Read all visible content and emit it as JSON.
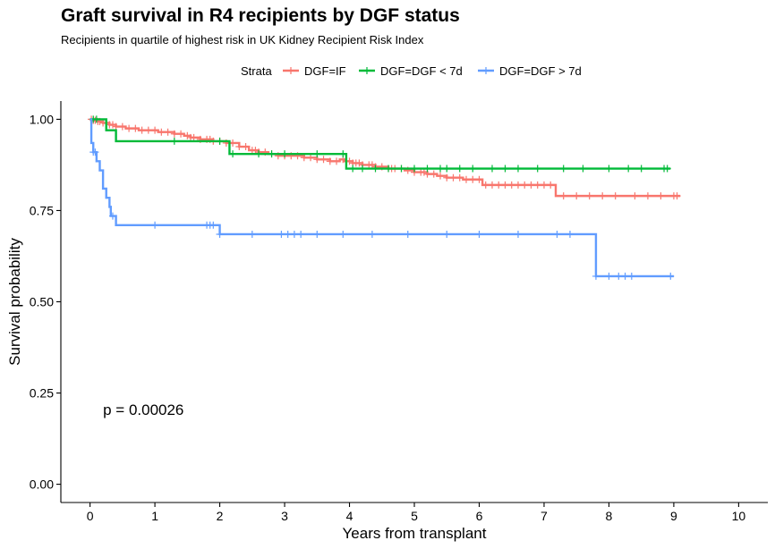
{
  "chart_data": {
    "type": "line",
    "subtype": "kaplan-meier step",
    "title": "Graft survival in R4 recipients by DGF status",
    "subtitle": "Recipients in quartile of highest risk in UK Kidney Recipient Risk Index",
    "xlabel": "Years from transplant",
    "ylabel": "Survival probability",
    "xlim": [
      -0.45,
      10.45
    ],
    "ylim": [
      -0.05,
      1.05
    ],
    "x_ticks": [
      0,
      1,
      2,
      3,
      4,
      5,
      6,
      7,
      8,
      9,
      10
    ],
    "x_tick_labels": [
      "0",
      "1",
      "2",
      "3",
      "4",
      "5",
      "6",
      "7",
      "8",
      "9",
      "10"
    ],
    "y_ticks": [
      0,
      0.25,
      0.5,
      0.75,
      1.0
    ],
    "y_tick_labels": [
      "0.00",
      "0.25",
      "0.50",
      "0.75",
      "1.00"
    ],
    "grid": false,
    "legend": {
      "title": "Strata",
      "position": "top",
      "entries": [
        "DGF=IF",
        "DGF=DGF < 7d",
        "DGF=DGF > 7d"
      ]
    },
    "annotation": {
      "text": "p = 0.00026",
      "x": 0.2,
      "y": 0.19
    },
    "series": [
      {
        "name": "DGF=IF",
        "color": "#F8766D",
        "steps": [
          [
            0,
            1.0
          ],
          [
            0.05,
            0.997
          ],
          [
            0.12,
            0.994
          ],
          [
            0.2,
            0.99
          ],
          [
            0.3,
            0.985
          ],
          [
            0.4,
            0.98
          ],
          [
            0.55,
            0.975
          ],
          [
            0.75,
            0.97
          ],
          [
            1.05,
            0.965
          ],
          [
            1.3,
            0.96
          ],
          [
            1.45,
            0.955
          ],
          [
            1.55,
            0.95
          ],
          [
            1.7,
            0.945
          ],
          [
            1.9,
            0.94
          ],
          [
            2.1,
            0.935
          ],
          [
            2.3,
            0.925
          ],
          [
            2.45,
            0.915
          ],
          [
            2.6,
            0.91
          ],
          [
            2.75,
            0.905
          ],
          [
            2.9,
            0.9
          ],
          [
            3.3,
            0.895
          ],
          [
            3.5,
            0.89
          ],
          [
            3.7,
            0.885
          ],
          [
            3.85,
            0.89
          ],
          [
            3.92,
            0.885
          ],
          [
            4.05,
            0.88
          ],
          [
            4.2,
            0.875
          ],
          [
            4.4,
            0.87
          ],
          [
            4.6,
            0.865
          ],
          [
            4.85,
            0.86
          ],
          [
            5.0,
            0.855
          ],
          [
            5.2,
            0.85
          ],
          [
            5.35,
            0.845
          ],
          [
            5.5,
            0.84
          ],
          [
            5.75,
            0.835
          ],
          [
            6.05,
            0.82
          ],
          [
            7.18,
            0.79
          ],
          [
            9.1,
            0.79
          ]
        ],
        "censor_x": [
          0.02,
          0.05,
          0.08,
          0.12,
          0.15,
          0.2,
          0.25,
          0.3,
          0.35,
          0.4,
          0.5,
          0.6,
          0.7,
          0.8,
          0.9,
          1.0,
          1.1,
          1.2,
          1.3,
          1.4,
          1.5,
          1.55,
          1.6,
          1.7,
          1.8,
          1.85,
          1.9,
          2.0,
          2.1,
          2.2,
          2.3,
          2.4,
          2.5,
          2.55,
          2.6,
          2.7,
          2.8,
          2.9,
          3.0,
          3.1,
          3.2,
          3.3,
          3.4,
          3.5,
          3.6,
          3.7,
          3.8,
          3.9,
          4.0,
          4.05,
          4.1,
          4.15,
          4.2,
          4.3,
          4.35,
          4.4,
          4.5,
          4.6,
          4.65,
          4.7,
          4.8,
          4.9,
          5.0,
          5.1,
          5.15,
          5.2,
          5.3,
          5.4,
          5.5,
          5.6,
          5.7,
          5.8,
          5.9,
          6.0,
          6.1,
          6.2,
          6.3,
          6.4,
          6.5,
          6.6,
          6.7,
          6.8,
          6.9,
          7.0,
          7.1,
          7.3,
          7.5,
          7.7,
          7.9,
          8.1,
          8.4,
          8.6,
          8.8,
          9.0,
          9.05
        ]
      },
      {
        "name": "DGF=DGF < 7d",
        "color": "#00BA38",
        "steps": [
          [
            0,
            1.0
          ],
          [
            0.25,
            0.97
          ],
          [
            0.4,
            0.94
          ],
          [
            2.15,
            0.905
          ],
          [
            3.95,
            0.865
          ],
          [
            8.95,
            0.865
          ]
        ],
        "censor_x": [
          0.05,
          0.1,
          1.3,
          2.0,
          2.2,
          2.6,
          2.8,
          3.0,
          3.5,
          3.9,
          4.05,
          4.2,
          4.4,
          4.6,
          4.8,
          5.0,
          5.2,
          5.4,
          5.5,
          5.7,
          5.9,
          6.2,
          6.4,
          6.6,
          6.9,
          7.3,
          7.6,
          8.0,
          8.3,
          8.5,
          8.85,
          8.9
        ]
      },
      {
        "name": "DGF=DGF > 7d",
        "color": "#619CFF",
        "steps": [
          [
            0,
            1.0
          ],
          [
            0.02,
            0.935
          ],
          [
            0.05,
            0.91
          ],
          [
            0.1,
            0.885
          ],
          [
            0.15,
            0.86
          ],
          [
            0.2,
            0.81
          ],
          [
            0.25,
            0.785
          ],
          [
            0.3,
            0.76
          ],
          [
            0.32,
            0.735
          ],
          [
            0.4,
            0.71
          ],
          [
            2.0,
            0.685
          ],
          [
            7.8,
            0.57
          ],
          [
            9.0,
            0.57
          ]
        ],
        "censor_x": [
          0.05,
          0.08,
          0.35,
          1.0,
          1.8,
          1.85,
          1.9,
          2.0,
          2.5,
          2.95,
          3.05,
          3.15,
          3.25,
          3.5,
          3.9,
          4.35,
          4.9,
          5.5,
          6.0,
          6.6,
          7.2,
          7.4,
          7.8,
          8.0,
          8.15,
          8.25,
          8.35,
          8.95
        ]
      }
    ]
  }
}
